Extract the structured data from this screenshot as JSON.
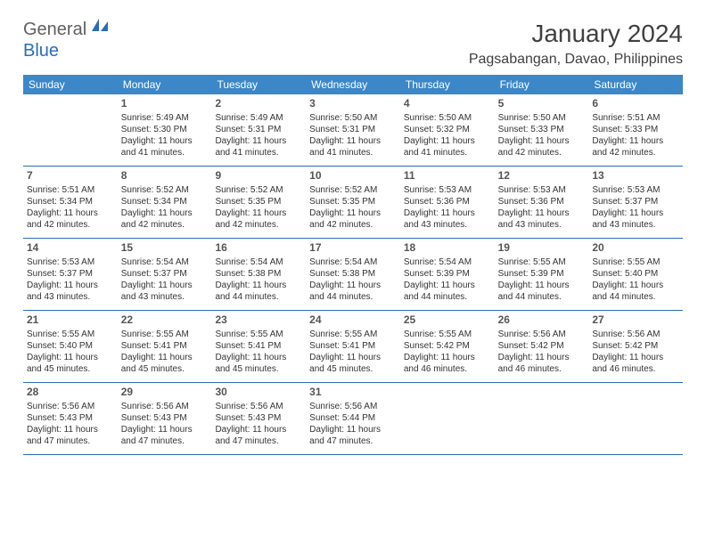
{
  "logo": {
    "part1": "General",
    "part2": "Blue"
  },
  "title": "January 2024",
  "location": "Pagsabangan, Davao, Philippines",
  "header_color": "#3b87c8",
  "row_border_color": "#2a6db8",
  "day_headers": [
    "Sunday",
    "Monday",
    "Tuesday",
    "Wednesday",
    "Thursday",
    "Friday",
    "Saturday"
  ],
  "weeks": [
    [
      null,
      {
        "n": "1",
        "sr": "Sunrise: 5:49 AM",
        "ss": "Sunset: 5:30 PM",
        "d1": "Daylight: 11 hours",
        "d2": "and 41 minutes."
      },
      {
        "n": "2",
        "sr": "Sunrise: 5:49 AM",
        "ss": "Sunset: 5:31 PM",
        "d1": "Daylight: 11 hours",
        "d2": "and 41 minutes."
      },
      {
        "n": "3",
        "sr": "Sunrise: 5:50 AM",
        "ss": "Sunset: 5:31 PM",
        "d1": "Daylight: 11 hours",
        "d2": "and 41 minutes."
      },
      {
        "n": "4",
        "sr": "Sunrise: 5:50 AM",
        "ss": "Sunset: 5:32 PM",
        "d1": "Daylight: 11 hours",
        "d2": "and 41 minutes."
      },
      {
        "n": "5",
        "sr": "Sunrise: 5:50 AM",
        "ss": "Sunset: 5:33 PM",
        "d1": "Daylight: 11 hours",
        "d2": "and 42 minutes."
      },
      {
        "n": "6",
        "sr": "Sunrise: 5:51 AM",
        "ss": "Sunset: 5:33 PM",
        "d1": "Daylight: 11 hours",
        "d2": "and 42 minutes."
      }
    ],
    [
      {
        "n": "7",
        "sr": "Sunrise: 5:51 AM",
        "ss": "Sunset: 5:34 PM",
        "d1": "Daylight: 11 hours",
        "d2": "and 42 minutes."
      },
      {
        "n": "8",
        "sr": "Sunrise: 5:52 AM",
        "ss": "Sunset: 5:34 PM",
        "d1": "Daylight: 11 hours",
        "d2": "and 42 minutes."
      },
      {
        "n": "9",
        "sr": "Sunrise: 5:52 AM",
        "ss": "Sunset: 5:35 PM",
        "d1": "Daylight: 11 hours",
        "d2": "and 42 minutes."
      },
      {
        "n": "10",
        "sr": "Sunrise: 5:52 AM",
        "ss": "Sunset: 5:35 PM",
        "d1": "Daylight: 11 hours",
        "d2": "and 42 minutes."
      },
      {
        "n": "11",
        "sr": "Sunrise: 5:53 AM",
        "ss": "Sunset: 5:36 PM",
        "d1": "Daylight: 11 hours",
        "d2": "and 43 minutes."
      },
      {
        "n": "12",
        "sr": "Sunrise: 5:53 AM",
        "ss": "Sunset: 5:36 PM",
        "d1": "Daylight: 11 hours",
        "d2": "and 43 minutes."
      },
      {
        "n": "13",
        "sr": "Sunrise: 5:53 AM",
        "ss": "Sunset: 5:37 PM",
        "d1": "Daylight: 11 hours",
        "d2": "and 43 minutes."
      }
    ],
    [
      {
        "n": "14",
        "sr": "Sunrise: 5:53 AM",
        "ss": "Sunset: 5:37 PM",
        "d1": "Daylight: 11 hours",
        "d2": "and 43 minutes."
      },
      {
        "n": "15",
        "sr": "Sunrise: 5:54 AM",
        "ss": "Sunset: 5:37 PM",
        "d1": "Daylight: 11 hours",
        "d2": "and 43 minutes."
      },
      {
        "n": "16",
        "sr": "Sunrise: 5:54 AM",
        "ss": "Sunset: 5:38 PM",
        "d1": "Daylight: 11 hours",
        "d2": "and 44 minutes."
      },
      {
        "n": "17",
        "sr": "Sunrise: 5:54 AM",
        "ss": "Sunset: 5:38 PM",
        "d1": "Daylight: 11 hours",
        "d2": "and 44 minutes."
      },
      {
        "n": "18",
        "sr": "Sunrise: 5:54 AM",
        "ss": "Sunset: 5:39 PM",
        "d1": "Daylight: 11 hours",
        "d2": "and 44 minutes."
      },
      {
        "n": "19",
        "sr": "Sunrise: 5:55 AM",
        "ss": "Sunset: 5:39 PM",
        "d1": "Daylight: 11 hours",
        "d2": "and 44 minutes."
      },
      {
        "n": "20",
        "sr": "Sunrise: 5:55 AM",
        "ss": "Sunset: 5:40 PM",
        "d1": "Daylight: 11 hours",
        "d2": "and 44 minutes."
      }
    ],
    [
      {
        "n": "21",
        "sr": "Sunrise: 5:55 AM",
        "ss": "Sunset: 5:40 PM",
        "d1": "Daylight: 11 hours",
        "d2": "and 45 minutes."
      },
      {
        "n": "22",
        "sr": "Sunrise: 5:55 AM",
        "ss": "Sunset: 5:41 PM",
        "d1": "Daylight: 11 hours",
        "d2": "and 45 minutes."
      },
      {
        "n": "23",
        "sr": "Sunrise: 5:55 AM",
        "ss": "Sunset: 5:41 PM",
        "d1": "Daylight: 11 hours",
        "d2": "and 45 minutes."
      },
      {
        "n": "24",
        "sr": "Sunrise: 5:55 AM",
        "ss": "Sunset: 5:41 PM",
        "d1": "Daylight: 11 hours",
        "d2": "and 45 minutes."
      },
      {
        "n": "25",
        "sr": "Sunrise: 5:55 AM",
        "ss": "Sunset: 5:42 PM",
        "d1": "Daylight: 11 hours",
        "d2": "and 46 minutes."
      },
      {
        "n": "26",
        "sr": "Sunrise: 5:56 AM",
        "ss": "Sunset: 5:42 PM",
        "d1": "Daylight: 11 hours",
        "d2": "and 46 minutes."
      },
      {
        "n": "27",
        "sr": "Sunrise: 5:56 AM",
        "ss": "Sunset: 5:42 PM",
        "d1": "Daylight: 11 hours",
        "d2": "and 46 minutes."
      }
    ],
    [
      {
        "n": "28",
        "sr": "Sunrise: 5:56 AM",
        "ss": "Sunset: 5:43 PM",
        "d1": "Daylight: 11 hours",
        "d2": "and 47 minutes."
      },
      {
        "n": "29",
        "sr": "Sunrise: 5:56 AM",
        "ss": "Sunset: 5:43 PM",
        "d1": "Daylight: 11 hours",
        "d2": "and 47 minutes."
      },
      {
        "n": "30",
        "sr": "Sunrise: 5:56 AM",
        "ss": "Sunset: 5:43 PM",
        "d1": "Daylight: 11 hours",
        "d2": "and 47 minutes."
      },
      {
        "n": "31",
        "sr": "Sunrise: 5:56 AM",
        "ss": "Sunset: 5:44 PM",
        "d1": "Daylight: 11 hours",
        "d2": "and 47 minutes."
      },
      null,
      null,
      null
    ]
  ]
}
